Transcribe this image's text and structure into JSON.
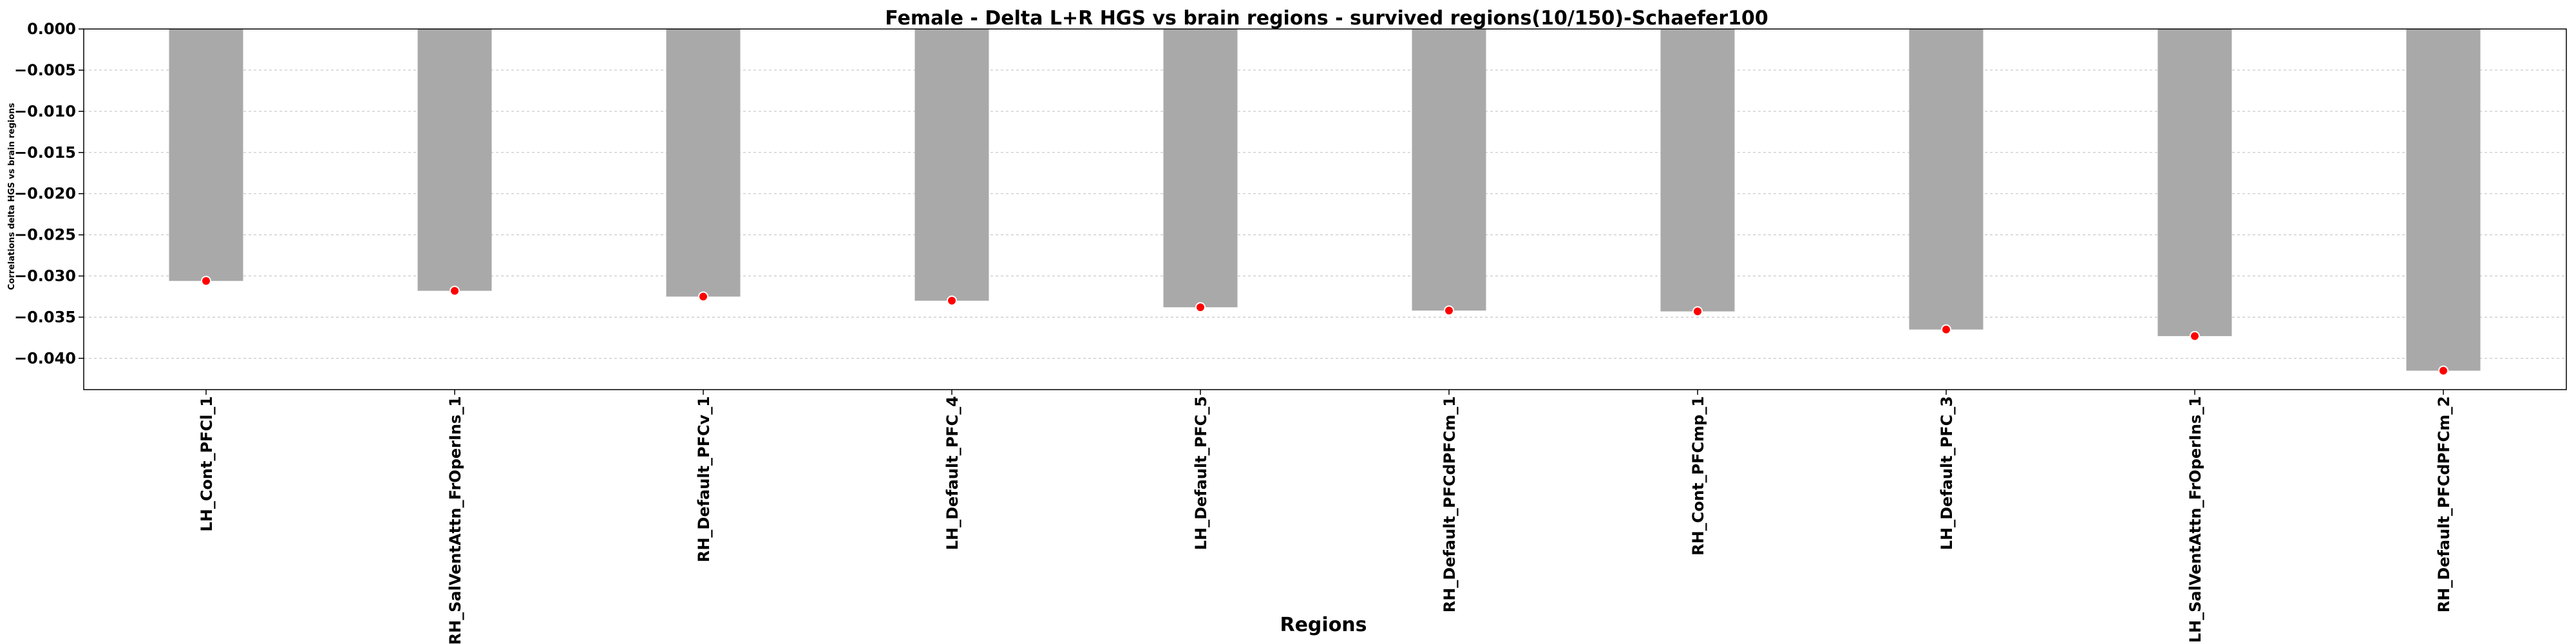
{
  "chart_data": {
    "type": "bar",
    "title": "Female - Delta L+R HGS vs brain regions - survived regions(10/150)-Schaefer100",
    "xlabel": "Regions",
    "ylabel": "Correlations delta HGS vs brain regions",
    "ylim": [
      -0.0438,
      0.0
    ],
    "yticks": [
      0.0,
      -0.005,
      -0.01,
      -0.015,
      -0.02,
      -0.025,
      -0.03,
      -0.035,
      -0.04
    ],
    "ytick_labels": [
      "0.000",
      "−0.005",
      "−0.010",
      "−0.015",
      "−0.020",
      "−0.025",
      "−0.030",
      "−0.035",
      "−0.040"
    ],
    "grid": "y-dashed",
    "categories": [
      "LH_Cont_PFCl_1",
      "RH_SalVentAttn_FrOperIns_1",
      "RH_Default_PFCv_1",
      "LH_Default_PFC_4",
      "LH_Default_PFC_5",
      "RH_Default_PFCdPFCm_1",
      "RH_Cont_PFCmp_1",
      "LH_Default_PFC_3",
      "LH_SalVentAttn_FrOperIns_1",
      "RH_Default_PFCdPFCm_2"
    ],
    "values": [
      -0.0306,
      -0.0318,
      -0.0325,
      -0.033,
      -0.0338,
      -0.0342,
      -0.0343,
      -0.0365,
      -0.0373,
      -0.0415
    ],
    "bar_color": "#a9a9a9",
    "marker_color": "#ff0000"
  }
}
